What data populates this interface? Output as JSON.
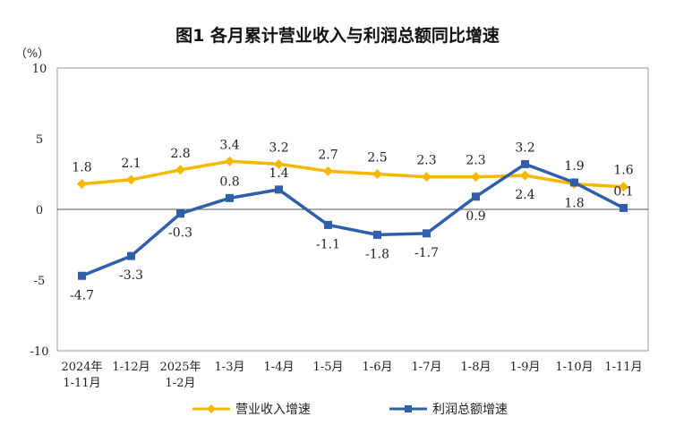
{
  "chart_data": {
    "type": "line",
    "title": "图1  各月累计营业收入与利润总额同比增速",
    "unit_label": "（%）",
    "ylim": [
      -10,
      10
    ],
    "yticks": [
      "10",
      "5",
      "0",
      "-5",
      "-10"
    ],
    "categories": [
      [
        "2024年",
        "1-11月"
      ],
      [
        "1-12月"
      ],
      [
        "2025年",
        "1-2月"
      ],
      [
        "1-3月"
      ],
      [
        "1-4月"
      ],
      [
        "1-5月"
      ],
      [
        "1-6月"
      ],
      [
        "1-7月"
      ],
      [
        "1-8月"
      ],
      [
        "1-9月"
      ],
      [
        "1-10月"
      ],
      [
        "1-11月"
      ]
    ],
    "series": [
      {
        "name": "营业收入增速",
        "color": "#F5B800",
        "marker": "diamond",
        "values": [
          1.8,
          2.1,
          2.8,
          3.4,
          3.2,
          2.7,
          2.5,
          2.3,
          2.3,
          2.4,
          1.8,
          1.6
        ],
        "labels": [
          "1.8",
          "2.1",
          "2.8",
          "3.4",
          "3.2",
          "2.7",
          "2.5",
          "2.3",
          "2.3",
          "2.4",
          "1.8",
          "1.6"
        ],
        "label_side": [
          "above",
          "above",
          "above",
          "above",
          "above",
          "above",
          "above",
          "above",
          "above",
          "below",
          "below",
          "above"
        ]
      },
      {
        "name": "利润总额增速",
        "color": "#2E5FA8",
        "marker": "square",
        "values": [
          -4.7,
          -3.3,
          -0.3,
          0.8,
          1.4,
          -1.1,
          -1.8,
          -1.7,
          0.9,
          3.2,
          1.9,
          0.1
        ],
        "labels": [
          "-4.7",
          "-3.3",
          "-0.3",
          "0.8",
          "1.4",
          "-1.1",
          "-1.8",
          "-1.7",
          "0.9",
          "3.2",
          "1.9",
          "0.1"
        ],
        "label_side": [
          "below",
          "below",
          "below",
          "above",
          "above",
          "below",
          "below",
          "below",
          "below",
          "above",
          "above",
          "above"
        ]
      }
    ],
    "grid": false,
    "legend_position": "bottom-center"
  }
}
